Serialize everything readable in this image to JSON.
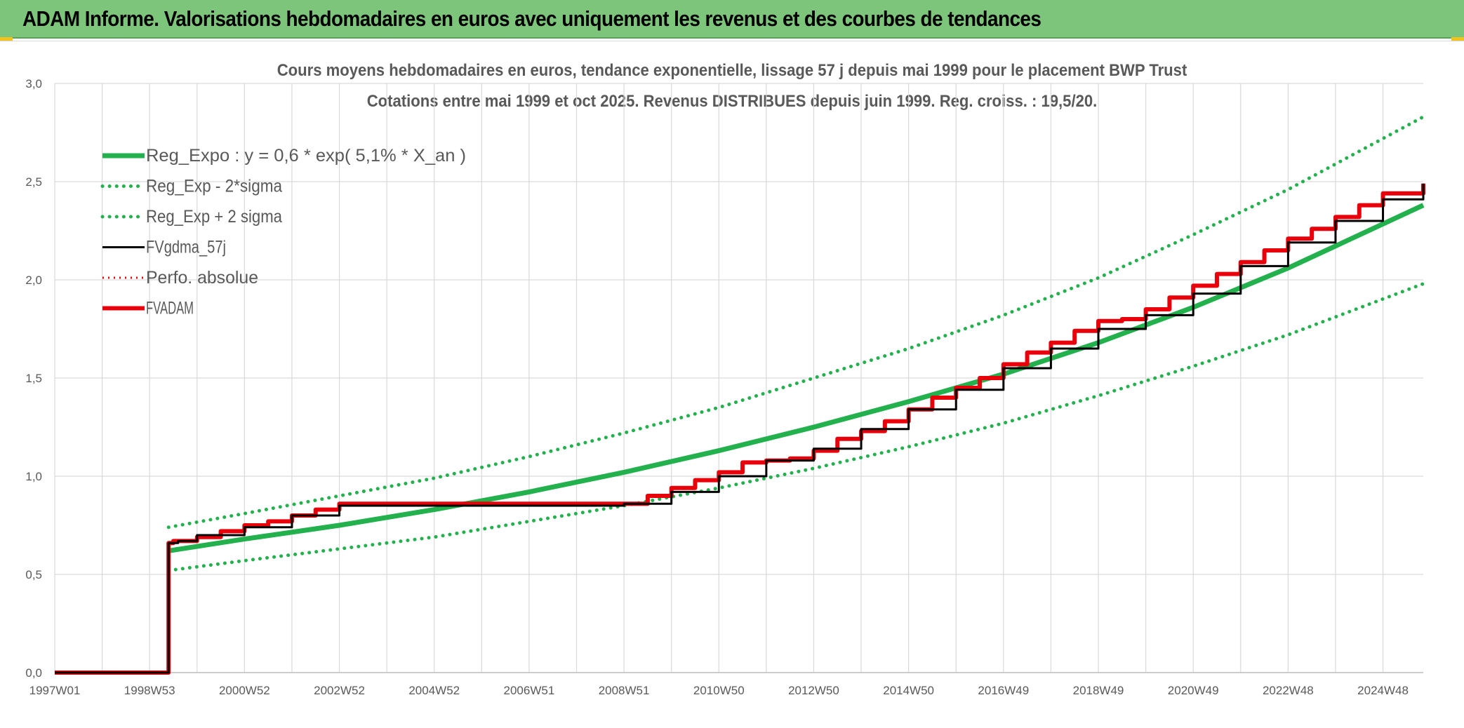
{
  "page": {
    "banner_title": "ADAM Informe. Valorisations hebdomadaires en euros avec uniquement les revenus et des courbes de tendances"
  },
  "colors": {
    "banner": "#7dc57a",
    "trend": "#22b14c",
    "sigma": "#22b14c",
    "fvgdma": "#000000",
    "perfo": "#e8000b",
    "fvadam": "#e8000b",
    "grid": "#d9d9d9",
    "axis_text": "#595959"
  },
  "chart_data": {
    "type": "line",
    "title": "Cours moyens hebdomadaires en euros, tendance exponentielle, lissage 57 j depuis mai 1999 pour le placement BWP Trust",
    "subtitle": "Cotations entre mai 1999 et oct 2025. Revenus DISTRIBUES depuis juin 1999. Reg. croiss. : 19,5/20.",
    "xlabel": "",
    "ylabel": "",
    "x_tick_labels": [
      "1997W01",
      "1998W53",
      "2000W52",
      "2002W52",
      "2004W52",
      "2006W51",
      "2008W51",
      "2010W50",
      "2012W50",
      "2014W50",
      "2016W49",
      "2018W49",
      "2020W49",
      "2022W48",
      "2024W48"
    ],
    "x_range_years": [
      1997.0,
      2025.85
    ],
    "y_ticks": [
      0.0,
      0.5,
      1.0,
      1.5,
      2.0,
      2.5,
      3.0
    ],
    "y_tick_labels": [
      "0,0",
      "0,5",
      "1,0",
      "1,5",
      "2,0",
      "2,5",
      "3,0"
    ],
    "ylim": [
      0,
      3.0
    ],
    "grid": true,
    "legend_position": "top-left",
    "legend": [
      {
        "label": "Reg_Expo : y = 0,6 * exp( 5,1% *  X_an )",
        "style": "solid-thick-green"
      },
      {
        "label": "Reg_Exp - 2*sigma",
        "style": "dotted-green"
      },
      {
        "label": "Reg_Exp + 2 sigma",
        "style": "dotted-green"
      },
      {
        "label": "FVgdma_57j",
        "style": "solid-black"
      },
      {
        "label": "Perfo. absolue",
        "style": "dotted-red"
      },
      {
        "label": "FVADAM",
        "style": "solid-thick-red"
      }
    ],
    "series": [
      {
        "name": "Reg_Expo : y = 0,6 * exp( 5,1% *  X_an )",
        "x": [
          1999.4,
          2001.0,
          2003.0,
          2005.0,
          2007.0,
          2009.0,
          2011.0,
          2013.0,
          2015.0,
          2017.0,
          2019.0,
          2021.0,
          2023.0,
          2025.85
        ],
        "y": [
          0.62,
          0.68,
          0.75,
          0.83,
          0.92,
          1.02,
          1.13,
          1.25,
          1.38,
          1.52,
          1.68,
          1.86,
          2.06,
          2.38
        ]
      },
      {
        "name": "Reg_Exp - 2*sigma",
        "x": [
          1999.4,
          2001.0,
          2003.0,
          2005.0,
          2007.0,
          2009.0,
          2011.0,
          2013.0,
          2015.0,
          2017.0,
          2019.0,
          2021.0,
          2023.0,
          2025.85
        ],
        "y": [
          0.52,
          0.57,
          0.63,
          0.69,
          0.77,
          0.85,
          0.94,
          1.04,
          1.15,
          1.27,
          1.41,
          1.56,
          1.72,
          1.98
        ]
      },
      {
        "name": "Reg_Exp + 2 sigma",
        "x": [
          1999.4,
          2001.0,
          2003.0,
          2005.0,
          2007.0,
          2009.0,
          2011.0,
          2013.0,
          2015.0,
          2017.0,
          2019.0,
          2021.0,
          2023.0,
          2025.85
        ],
        "y": [
          0.74,
          0.81,
          0.9,
          0.99,
          1.1,
          1.22,
          1.35,
          1.5,
          1.65,
          1.82,
          2.01,
          2.23,
          2.46,
          2.83
        ]
      },
      {
        "name": "FVgdma_57j",
        "x": [
          1997.0,
          1999.4,
          1999.4,
          1999.6,
          2000.0,
          2001.0,
          2002.0,
          2003.0,
          2004.0,
          2005.0,
          2006.0,
          2007.0,
          2008.0,
          2009.0,
          2010.0,
          2011.0,
          2012.0,
          2013.0,
          2014.0,
          2015.0,
          2016.0,
          2017.0,
          2018.0,
          2019.0,
          2020.0,
          2021.0,
          2022.0,
          2023.0,
          2024.0,
          2025.0,
          2025.85
        ],
        "y": [
          0.0,
          0.0,
          0.66,
          0.67,
          0.7,
          0.74,
          0.8,
          0.85,
          0.85,
          0.85,
          0.85,
          0.85,
          0.85,
          0.86,
          0.92,
          1.0,
          1.08,
          1.14,
          1.24,
          1.34,
          1.44,
          1.55,
          1.65,
          1.75,
          1.82,
          1.93,
          2.07,
          2.19,
          2.3,
          2.41,
          2.49
        ]
      },
      {
        "name": "Perfo. absolue",
        "x": [
          1999.4,
          2003.0,
          2009.0,
          2025.85
        ],
        "y": [
          0.66,
          0.85,
          0.86,
          2.49
        ]
      },
      {
        "name": "FVADAM",
        "x": [
          1997.0,
          1999.4,
          1999.4,
          1999.5,
          2000.0,
          2000.5,
          2001.0,
          2001.5,
          2002.0,
          2002.5,
          2003.0,
          2009.0,
          2009.5,
          2010.0,
          2010.5,
          2011.0,
          2011.5,
          2012.0,
          2012.5,
          2013.0,
          2013.5,
          2014.0,
          2014.5,
          2015.0,
          2015.5,
          2016.0,
          2016.5,
          2017.0,
          2017.5,
          2018.0,
          2018.5,
          2019.0,
          2019.5,
          2020.0,
          2020.5,
          2021.0,
          2021.5,
          2022.0,
          2022.5,
          2023.0,
          2023.5,
          2024.0,
          2024.5,
          2025.0,
          2025.85
        ],
        "y": [
          0.0,
          0.0,
          0.66,
          0.67,
          0.69,
          0.72,
          0.75,
          0.77,
          0.8,
          0.83,
          0.86,
          0.86,
          0.9,
          0.94,
          0.98,
          1.02,
          1.07,
          1.08,
          1.09,
          1.13,
          1.19,
          1.23,
          1.28,
          1.34,
          1.4,
          1.45,
          1.5,
          1.57,
          1.63,
          1.68,
          1.74,
          1.79,
          1.8,
          1.85,
          1.91,
          1.97,
          2.03,
          2.09,
          2.15,
          2.21,
          2.26,
          2.32,
          2.38,
          2.44,
          2.49
        ]
      }
    ]
  }
}
